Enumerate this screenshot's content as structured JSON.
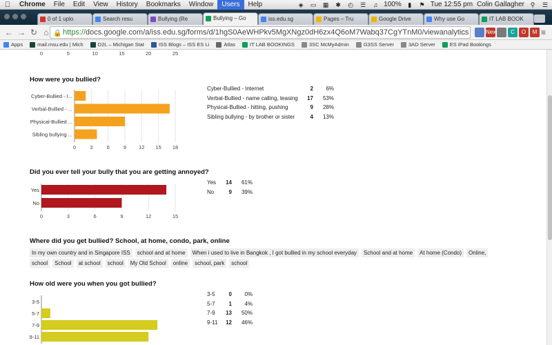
{
  "menubar": {
    "app": "Chrome",
    "menus": [
      "File",
      "Edit",
      "View",
      "History",
      "Bookmarks",
      "Window",
      "Users",
      "Help"
    ],
    "active_menu": "Users",
    "battery": "100%",
    "clock": "Tue 12:55 pm",
    "user": "Colin Gallagher"
  },
  "tabs": [
    {
      "title": "0 of 1 uplo",
      "color": "#d93025"
    },
    {
      "title": "Search resu",
      "color": "#4285f4"
    },
    {
      "title": "Bullying (Re",
      "color": "#7a4cc2"
    },
    {
      "title": "Bullying – Go",
      "color": "#0f9d58",
      "active": true
    },
    {
      "title": "iss.edu.sg",
      "color": "#4285f4"
    },
    {
      "title": "Pages – Tru",
      "color": "#f4b400"
    },
    {
      "title": "Google Drive",
      "color": "#f4b400"
    },
    {
      "title": "Why use Go",
      "color": "#4285f4"
    },
    {
      "title": "IT LAB BOOK",
      "color": "#0f9d58"
    }
  ],
  "address": {
    "scheme": "https://",
    "rest": "docs.google.com/a/iss.edu.sg/forms/d/1hgS0AeWHPkv5MgXNgz0dH6zx4Q6oM7Wabq37CgYTnM0/viewanalytics"
  },
  "extensions": [
    {
      "name": "app-icon",
      "color": "#5b7ec6",
      "label": ""
    },
    {
      "name": "new-badge-icon",
      "color": "#c0392b",
      "label": "New"
    },
    {
      "name": "shield-icon",
      "color": "#7a7a7a",
      "label": ""
    },
    {
      "name": "c-extension-icon",
      "color": "#1aa39a",
      "label": "C"
    },
    {
      "name": "opera-icon",
      "color": "#c0392b",
      "label": "O"
    },
    {
      "name": "mail-icon",
      "color": "#c0392b",
      "label": "M"
    }
  ],
  "bookmarks": [
    {
      "label": "Apps",
      "color": "#4285f4"
    },
    {
      "label": "mail.msu.edu | Mich",
      "color": "#18453b"
    },
    {
      "label": "D2L – Michigan Stat",
      "color": "#18453b"
    },
    {
      "label": "ISS Blogs – ISS ES Li",
      "color": "#2b5797"
    },
    {
      "label": "Atlas",
      "color": "#666666"
    },
    {
      "label": "IT LAB BOOKINGS",
      "color": "#0f9d58"
    },
    {
      "label": "3SC McMyAdmin",
      "color": "#888888"
    },
    {
      "label": "G3SS Server",
      "color": "#888888"
    },
    {
      "label": "3AD Server",
      "color": "#888888"
    },
    {
      "label": "ES iPad Bookings",
      "color": "#0f9d58"
    }
  ],
  "top_axis": {
    "ticks": [
      "0",
      "5",
      "10",
      "15",
      "20",
      "25"
    ]
  },
  "q1": {
    "title": "How were you bullied?",
    "legend": [
      {
        "label": "Cyber-Bullied - Internet",
        "count": "2",
        "pct": "6%"
      },
      {
        "label": "Verbal-Bullied - name calling, teasing",
        "count": "17",
        "pct": "53%"
      },
      {
        "label": "Physical-Bullied - hitting, pushing",
        "count": "9",
        "pct": "28%"
      },
      {
        "label": "Sibling bullying - by brother or sister",
        "count": "4",
        "pct": "13%"
      }
    ]
  },
  "q2": {
    "title": "Did you ever tell your bully that you are getting annoyed?",
    "legend": [
      {
        "label": "Yes",
        "count": "14",
        "pct": "61%"
      },
      {
        "label": "No",
        "count": "9",
        "pct": "39%"
      }
    ]
  },
  "q3": {
    "title": "Where did you get bullied? School, at home, condo, park, online",
    "responses": [
      "In my own country and in Singapore ISS",
      "school and at home",
      "When i used to live in Bangkok , I got bullied in my school everyday",
      "School and at home",
      "At home (Condo)",
      "Online,",
      "school",
      "School",
      "at school",
      "school",
      "My Old School",
      "online",
      "school, park",
      "school"
    ]
  },
  "q4": {
    "title": "How old were you when you got bullied?",
    "legend": [
      {
        "label": "3-5",
        "count": "0",
        "pct": "0%"
      },
      {
        "label": "5-7",
        "count": "1",
        "pct": "4%"
      },
      {
        "label": "7-9",
        "count": "13",
        "pct": "50%"
      },
      {
        "label": "9-11",
        "count": "12",
        "pct": "46%"
      }
    ]
  },
  "chart_data": [
    {
      "type": "bar",
      "orientation": "horizontal",
      "title": "How were you bullied?",
      "categories": [
        "Cyber-Bullied - I...",
        "Verbal-Bullied - ...",
        "Physical-Bullied ...",
        "Sibling bullying ..."
      ],
      "values": [
        2,
        17,
        9,
        4
      ],
      "xlim": [
        0,
        18
      ],
      "ticks": [
        0,
        3,
        6,
        9,
        12,
        15,
        18
      ],
      "color": "#f4a21d"
    },
    {
      "type": "bar",
      "orientation": "horizontal",
      "title": "Did you ever tell your bully that you are getting annoyed?",
      "categories": [
        "Yes",
        "No"
      ],
      "values": [
        14,
        9
      ],
      "xlim": [
        0,
        15
      ],
      "ticks": [
        0,
        3,
        6,
        9,
        12,
        15
      ],
      "color": "#b0171f"
    },
    {
      "type": "bar",
      "orientation": "horizontal",
      "title": "How old were you when you got bullied?",
      "categories": [
        "3-5",
        "5-7",
        "7-9",
        "9-11"
      ],
      "values": [
        0,
        1,
        13,
        12
      ],
      "xlim": [
        0,
        15
      ],
      "color": "#d4cc1e"
    }
  ]
}
